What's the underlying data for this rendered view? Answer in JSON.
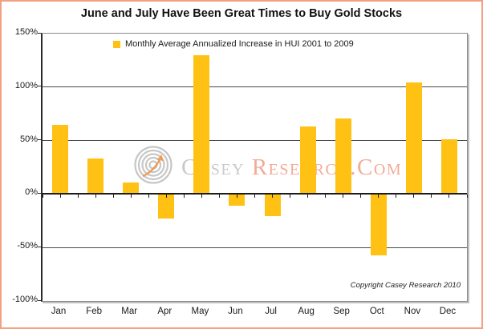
{
  "title": "June and July Have Been Great Times to Buy Gold Stocks",
  "legend": {
    "label": "Monthly Average Annualized Increase in HUI 2001 to 2009",
    "marker_color": "#FFC113"
  },
  "watermark": {
    "brand_part1": "Casey ",
    "brand_part2": "Research.Com",
    "part1_color": "#c9c9c9",
    "part2_color": "#f3ab97",
    "logo": "concentric-circles-with-orange-arrow"
  },
  "copyright": "Copyright Casey Research 2010",
  "colors": {
    "bar": "#FFC113",
    "frame_border": "#F2A184",
    "gridline": "#4a4a4a",
    "zero_line": "#1c1c1c",
    "plot_border": "#8a8a8a"
  },
  "chart_data": {
    "type": "bar",
    "title": "June and July Have Been Great Times to Buy Gold Stocks",
    "series": [
      {
        "name": "Monthly Average Annualized Increase in HUI 2001 to 2009",
        "values": [
          65,
          33,
          11,
          -23,
          130,
          -11,
          -21,
          63,
          71,
          -57,
          104,
          51
        ]
      }
    ],
    "categories": [
      "Jan",
      "Feb",
      "Mar",
      "Apr",
      "May",
      "Jun",
      "Jul",
      "Aug",
      "Sep",
      "Oct",
      "Nov",
      "Dec"
    ],
    "xlabel": "",
    "ylabel": "",
    "ylim": [
      -100,
      150
    ],
    "yticks": [
      150,
      100,
      50,
      0,
      -50,
      -100
    ],
    "ytick_labels": [
      "150%",
      "100%",
      "50%",
      "0%",
      "-50%",
      "-100%"
    ],
    "grid": true,
    "legend_position": "top-center-inside",
    "bar_color": "#FFC113"
  }
}
